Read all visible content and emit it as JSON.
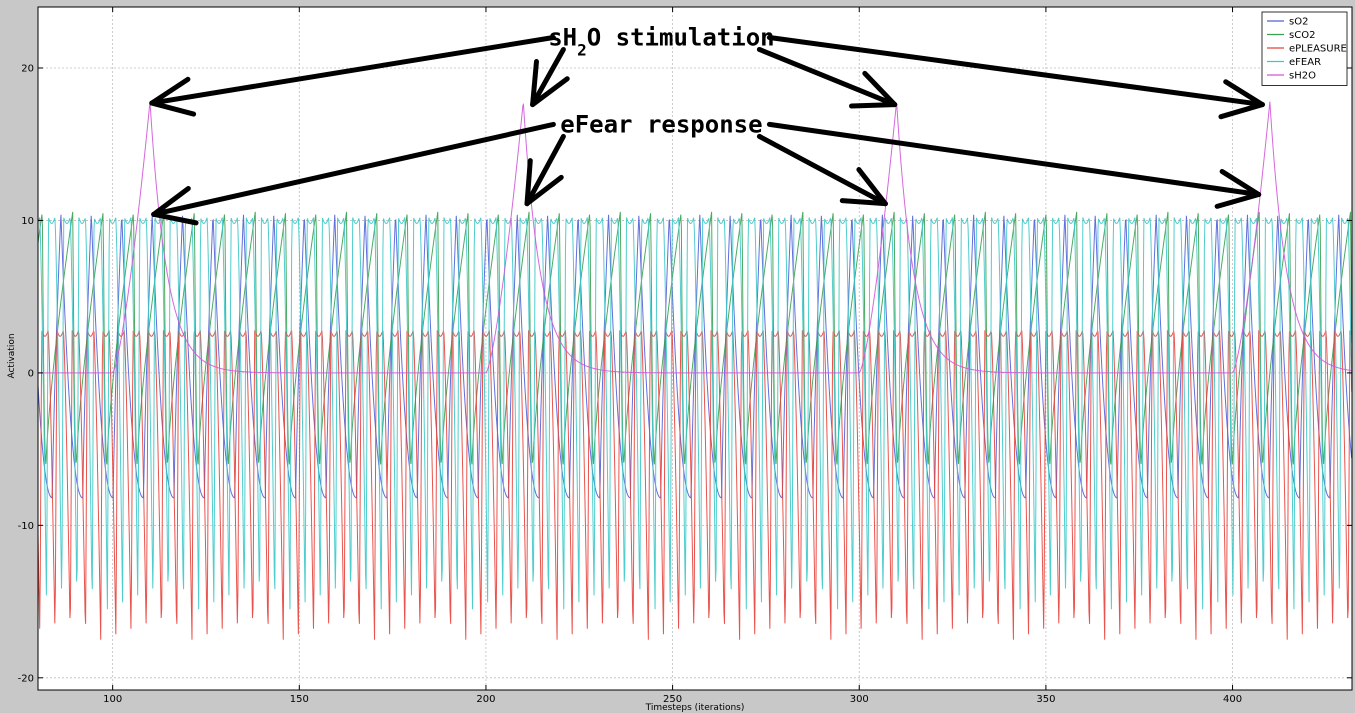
{
  "chart_data": {
    "type": "line",
    "xlabel": "Timesteps (iterations)",
    "ylabel": "Activation",
    "xlim": [
      80,
      432
    ],
    "ylim": [
      -20.8,
      24
    ],
    "xticks": [
      100,
      150,
      200,
      250,
      300,
      350,
      400
    ],
    "yticks": [
      -20,
      -10,
      0,
      10,
      20
    ],
    "grid": true,
    "legend_position": "top-right",
    "series": [
      {
        "name": "sO2",
        "color": "#4f5fd8",
        "model": {
          "kind": "sawtooth",
          "period": 8.15,
          "phase": 92,
          "high": 10.5,
          "low": -8.2,
          "rise_frac": 0.28
        }
      },
      {
        "name": "sCO2",
        "color": "#3aa050",
        "model": {
          "kind": "sawtooth",
          "period": 8.15,
          "phase": 90.3,
          "high": 10.6,
          "low": -6.0,
          "rise_frac": 0.88
        }
      },
      {
        "name": "ePLEASURE",
        "color": "#e8403a",
        "model": {
          "kind": "pulse",
          "period": 4.075,
          "phase": 80.5,
          "high": 2.8,
          "low": -17.5
        }
      },
      {
        "name": "eFEAR",
        "color": "#3cc8c8",
        "model": {
          "kind": "pulse",
          "period": 4.075,
          "phase": 82.3,
          "high": 10.2,
          "low": -15.5
        }
      },
      {
        "name": "sH2O",
        "color": "#d058d8",
        "model": {
          "kind": "stimulus",
          "starts": [
            100,
            200,
            300,
            400
          ],
          "duration": 10,
          "peak": 17.8,
          "decay": 4.6
        }
      }
    ],
    "annotations": [
      {
        "segments": [
          {
            "text": "sH"
          },
          {
            "text": "2",
            "sub": true
          },
          {
            "text": "O stimulation"
          }
        ],
        "label_x": 247,
        "label_y": 22.0,
        "targets": [
          [
            110.5,
            17.7
          ],
          [
            212.5,
            17.6
          ],
          [
            309.5,
            17.6
          ],
          [
            408,
            17.6
          ]
        ]
      },
      {
        "segments": [
          {
            "text": "eFear response"
          }
        ],
        "label_x": 247,
        "label_y": 16.3,
        "targets": [
          [
            111,
            10.4
          ],
          [
            211,
            11.1
          ],
          [
            307,
            11.1
          ],
          [
            407,
            11.7
          ]
        ]
      }
    ]
  }
}
